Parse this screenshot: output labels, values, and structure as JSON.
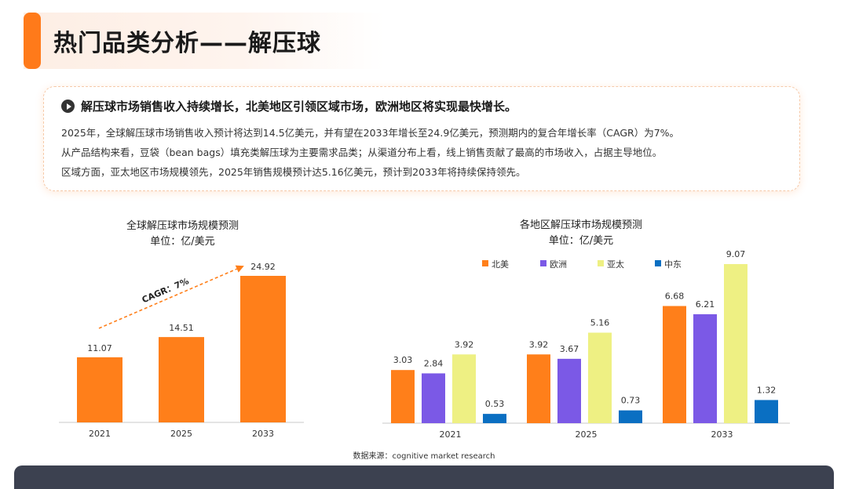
{
  "page": {
    "title": "热门品类分析——解压球",
    "headline": "解压球市场销售收入持续增长，北美地区引领区域市场，欧洲地区将实现最快增长。",
    "paragraphs": [
      "2025年，全球解压球市场销售收入预计将达到14.5亿美元，并有望在2033年增长至24.9亿美元，预测期内的复合年增长率（CAGR）为7%。",
      "从产品结构来看，豆袋（bean bags）填充类解压球为主要需求品类；从渠道分布上看，线上销售贡献了最高的市场收入，占据主导地位。",
      "区域方面，亚太地区市场规模领先，2025年销售规模预计达5.16亿美元，预计到2033年将持续保持领先。"
    ],
    "source": "数据来源：cognitive market research"
  },
  "chart_data": [
    {
      "type": "bar",
      "title": "全球解压球市场规模预测",
      "subtitle": "单位：亿/美元",
      "categories": [
        "2021",
        "2025",
        "2033"
      ],
      "values": [
        11.07,
        14.51,
        24.92
      ],
      "data_labels": [
        "11.07",
        "14.51",
        "24.92"
      ],
      "annotation": "CAGR：7%",
      "color": "#ff7f1a",
      "ylim": [
        0,
        28
      ],
      "grid": false
    },
    {
      "type": "bar",
      "title": "各地区解压球市场规模预测",
      "subtitle": "单位：亿/美元",
      "categories": [
        "2021",
        "2025",
        "2033"
      ],
      "series": [
        {
          "name": "北美",
          "values": [
            3.03,
            3.92,
            6.68
          ],
          "labels": [
            "3.03",
            "3.92",
            "6.68"
          ],
          "color": "#ff7f1a"
        },
        {
          "name": "欧洲",
          "values": [
            2.84,
            3.67,
            6.21
          ],
          "labels": [
            "2.84",
            "3.67",
            "6.21"
          ],
          "color": "#7b59e6"
        },
        {
          "name": "亚太",
          "values": [
            3.92,
            5.16,
            9.07
          ],
          "labels": [
            "3.92",
            "5.16",
            "9.07"
          ],
          "color": "#eef083"
        },
        {
          "name": "中东",
          "values": [
            0.53,
            0.73,
            1.32
          ],
          "labels": [
            "0.53",
            "0.73",
            "1.32"
          ],
          "color": "#0a6fc2"
        }
      ],
      "legend": "top",
      "ylim": [
        0,
        10
      ],
      "grid": false
    }
  ]
}
